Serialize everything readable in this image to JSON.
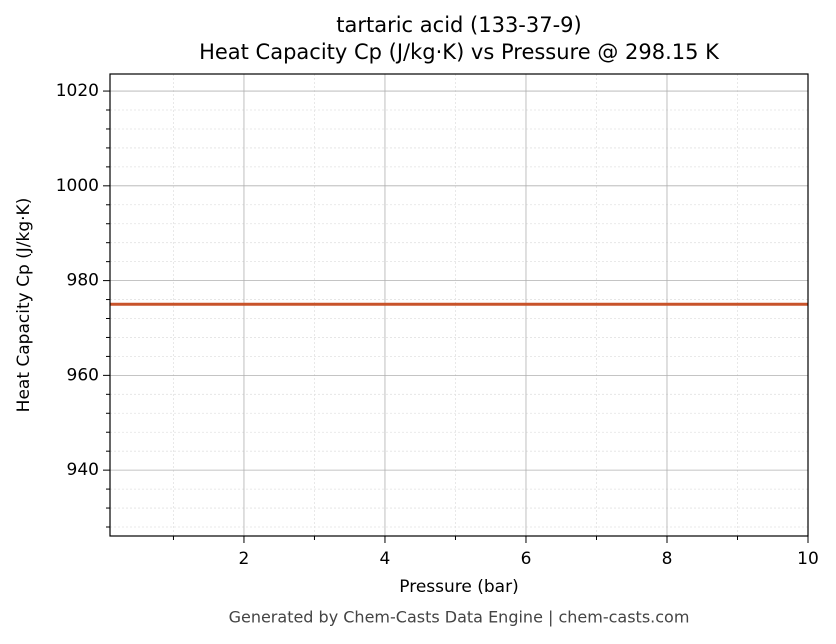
{
  "chart_data": {
    "type": "line",
    "title": "tartaric acid (133-37-9)",
    "subtitle": "Heat Capacity Cp (J/kg·K) vs Pressure @ 298.15 K",
    "x_label": "Pressure (bar)",
    "y_label": "Heat Capacity Cp (J/kg·K)",
    "x": [
      0.1,
      10
    ],
    "series": [
      {
        "color": "#c8532a",
        "values": [
          975,
          975
        ]
      }
    ],
    "xlim": [
      0.1,
      10
    ],
    "xticks": [
      2,
      4,
      6,
      8,
      10
    ],
    "xminorticks": [
      1,
      3,
      5,
      7,
      9
    ],
    "ylim": [
      926.1,
      1023.6
    ],
    "yticks": [
      940,
      960,
      980,
      1000,
      1020
    ],
    "yminorticks": [
      928,
      932,
      936,
      944,
      948,
      952,
      956,
      964,
      968,
      972,
      976,
      984,
      988,
      992,
      996,
      1004,
      1008,
      1012,
      1016
    ],
    "grid": true
  },
  "footer": "Generated by Chem-Casts Data Engine | chem-casts.com"
}
